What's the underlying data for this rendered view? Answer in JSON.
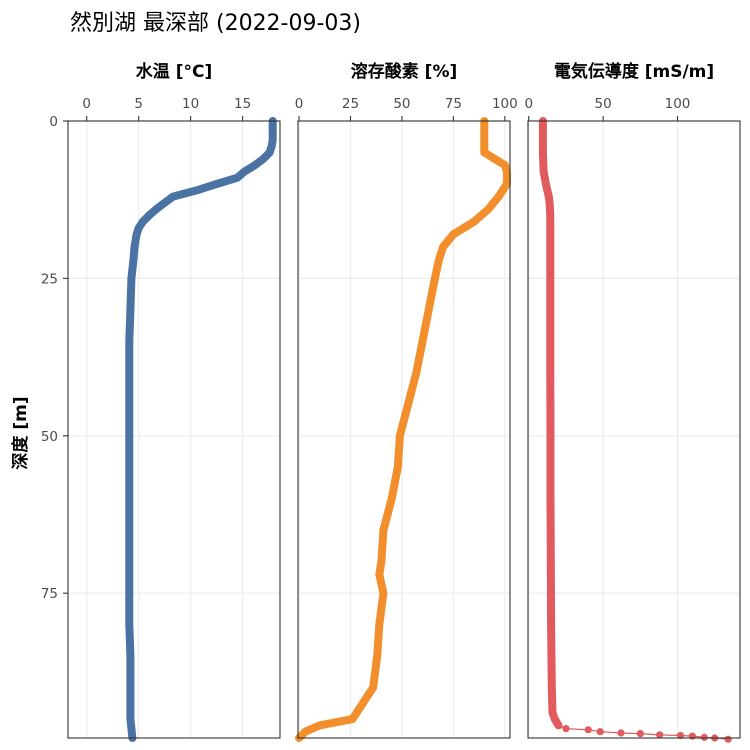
{
  "title": "然別湖 最深部 (2022-09-03)",
  "ylabel": "深度 [m]",
  "chart_data": {
    "type": "line",
    "title": "然別湖 最深部 (2022-09-03)",
    "ylabel": "深度 [m]",
    "y_axis": {
      "label": "深度 [m]",
      "reversed": true,
      "range": [
        0,
        98
      ],
      "ticks": [
        0,
        25,
        50,
        75
      ]
    },
    "grid": true,
    "panels": [
      {
        "label": "水温 [°C]",
        "color": "#4a72a2",
        "xlim": [
          -1.8,
          18.6
        ],
        "xticks": [
          0,
          5,
          10,
          15
        ],
        "series": {
          "depth": [
            0,
            3,
            4,
            5,
            6,
            7,
            8,
            9,
            10,
            11,
            12,
            13,
            14,
            15,
            16,
            17,
            18,
            20,
            22,
            25,
            30,
            35,
            40,
            45,
            50,
            55,
            60,
            65,
            70,
            75,
            80,
            85,
            90,
            95,
            98
          ],
          "value": [
            17.9,
            17.9,
            17.8,
            17.6,
            17.0,
            16.2,
            15.2,
            14.5,
            12.5,
            10.6,
            8.3,
            7.5,
            6.7,
            6.0,
            5.4,
            5.0,
            4.8,
            4.6,
            4.5,
            4.3,
            4.2,
            4.1,
            4.1,
            4.1,
            4.1,
            4.1,
            4.1,
            4.1,
            4.1,
            4.1,
            4.1,
            4.2,
            4.2,
            4.2,
            4.4
          ]
        }
      },
      {
        "label": "溶存酸素 [%]",
        "color": "#f28e2b",
        "xlim": [
          -0.5,
          102.5
        ],
        "xticks": [
          0,
          25,
          50,
          75,
          100
        ],
        "series": {
          "depth": [
            0,
            3,
            5,
            6,
            7,
            8,
            10,
            12,
            14,
            16,
            18,
            20,
            22,
            25,
            30,
            35,
            40,
            45,
            50,
            55,
            60,
            65,
            70,
            72,
            75,
            80,
            85,
            90,
            95,
            96,
            97,
            98
          ],
          "value": [
            90,
            90,
            90,
            95,
            100,
            101,
            101,
            97,
            92,
            85,
            75,
            70,
            68,
            66,
            63,
            60,
            57,
            53,
            49,
            48,
            45,
            41,
            40,
            39,
            41,
            39,
            38,
            36,
            26,
            10,
            3,
            0
          ]
        }
      },
      {
        "label": "電気伝導度 [mS/m]",
        "color": "#e05a5e",
        "xlim": [
          -0.5,
          142
        ],
        "xticks": [
          0,
          50,
          100
        ],
        "series": {
          "depth": [
            0,
            5,
            8,
            10,
            11,
            12,
            13,
            15,
            20,
            30,
            40,
            50,
            60,
            70,
            80,
            90,
            94,
            95,
            96
          ],
          "value": [
            9.5,
            9.5,
            10.0,
            11.5,
            12.5,
            13.5,
            14.0,
            14.5,
            14.5,
            14.5,
            14.5,
            14.6,
            14.6,
            14.8,
            15.0,
            15.5,
            16.0,
            17.5,
            20.0
          ]
        },
        "tail_points": {
          "depth": [
            96.5,
            96.7,
            97.0,
            97.2,
            97.3,
            97.5,
            97.6,
            97.7,
            97.9,
            98.0,
            98.2
          ],
          "value": [
            25,
            40,
            48,
            62,
            75,
            88,
            102,
            110,
            118,
            125,
            134
          ]
        }
      }
    ]
  }
}
